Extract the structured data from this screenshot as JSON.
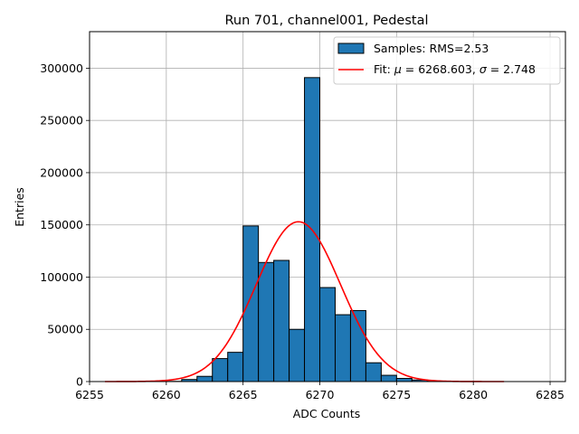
{
  "chart_data": {
    "type": "bar",
    "title": "Run 701, channel001, Pedestal",
    "xlabel": "ADC Counts",
    "ylabel": "Entries",
    "xlim": [
      6255.0,
      6286.0
    ],
    "ylim": [
      0,
      335000
    ],
    "xticks": [
      6255,
      6260,
      6265,
      6270,
      6275,
      6280,
      6285
    ],
    "yticks": [
      0,
      50000,
      100000,
      150000,
      200000,
      250000,
      300000
    ],
    "grid": true,
    "legend_position": "top-right",
    "series": [
      {
        "name": "Samples: RMS=2.53",
        "kind": "histogram",
        "color": "#1f77b4",
        "edge_color": "#000000",
        "bin_width": 1,
        "bin_starts": [
          6260,
          6261,
          6262,
          6263,
          6264,
          6265,
          6266,
          6267,
          6268,
          6269,
          6270,
          6271,
          6272,
          6273,
          6274,
          6275,
          6276,
          6277
        ],
        "values": [
          200,
          2000,
          5000,
          22000,
          28000,
          149000,
          114000,
          116000,
          50000,
          291000,
          90000,
          64000,
          68000,
          18000,
          6000,
          3000,
          1500,
          500
        ]
      },
      {
        "name": "Fit: μ = 6268.603, σ = 2.748",
        "kind": "gaussian",
        "color": "#ff0000",
        "mu": 6268.603,
        "sigma": 2.748,
        "amplitude": 153000,
        "x_range": [
          6256,
          6282
        ]
      }
    ],
    "legend": {
      "samples_prefix": "Samples: RMS=2.53",
      "fit_prefix": "Fit: ",
      "mu_symbol": "μ",
      "mu_text": " = 6268.603, ",
      "sigma_symbol": "σ",
      "sigma_text": " = 2.748"
    }
  }
}
